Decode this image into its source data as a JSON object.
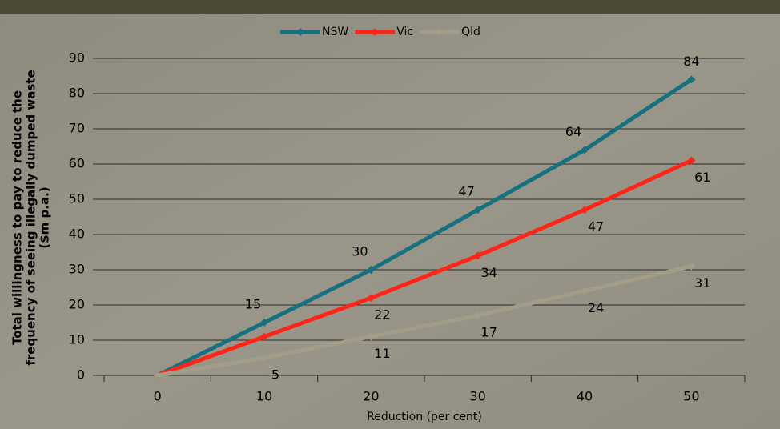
{
  "chart_data": {
    "type": "line",
    "x_label": "Reduction (per cent)",
    "y_label": [
      "Total willingness to pay to reduce the",
      "frequency of seeing illegally dumped waste",
      "($m p.a.)"
    ],
    "categories": [
      "0",
      "10",
      "20",
      "30",
      "40",
      "50"
    ],
    "series": [
      {
        "name": "NSW",
        "color": "#17707f",
        "values": [
          0,
          15,
          30,
          47,
          64,
          84
        ],
        "value_labels": [
          null,
          "15",
          "30",
          "47",
          "64",
          "84"
        ]
      },
      {
        "name": "Vic",
        "color": "#ff2418",
        "values": [
          0,
          11,
          22,
          34,
          47,
          61
        ],
        "value_labels": [
          null,
          null,
          "22",
          "34",
          "47",
          "61"
        ]
      },
      {
        "name": "Qld",
        "color": "#a39c88",
        "values": [
          0,
          5,
          11,
          17,
          24,
          31
        ],
        "value_labels": [
          null,
          "5",
          "11",
          "17",
          "24",
          "31"
        ]
      }
    ],
    "ylim": [
      0,
      90
    ],
    "yticks": [
      0,
      10,
      20,
      30,
      40,
      50,
      60,
      70,
      80,
      90
    ],
    "grid": true,
    "legend": "top"
  }
}
